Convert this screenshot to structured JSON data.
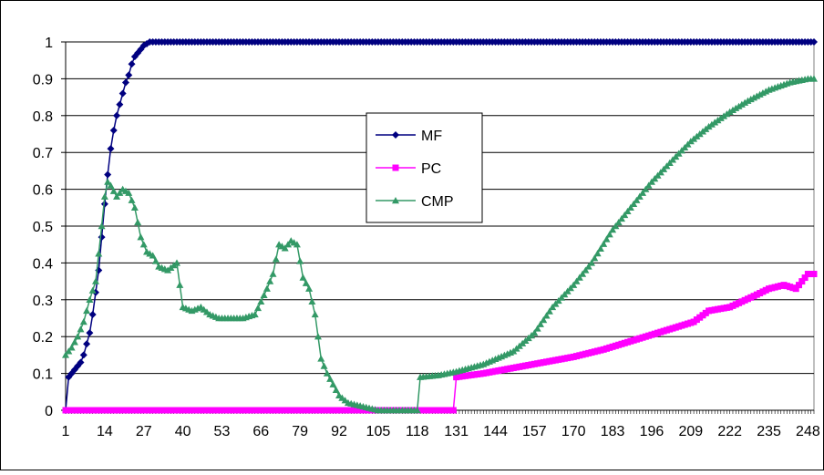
{
  "chart_data": {
    "type": "line",
    "title": "",
    "xlabel": "",
    "ylabel": "",
    "x_range": [
      1,
      250
    ],
    "xticks": [
      1,
      14,
      27,
      40,
      53,
      66,
      79,
      92,
      105,
      118,
      131,
      144,
      157,
      170,
      183,
      196,
      209,
      222,
      235,
      248
    ],
    "xtick_labels": [
      "1",
      "14",
      "27",
      "40",
      "53",
      "66",
      "79",
      "92",
      "105",
      "118",
      "131",
      "144",
      "157",
      "170",
      "183",
      "196",
      "209",
      "222",
      "235",
      "248"
    ],
    "ylim": [
      0,
      1
    ],
    "yticks": [
      0,
      0.1,
      0.2,
      0.3,
      0.4,
      0.5,
      0.6,
      0.7,
      0.8,
      0.9,
      1
    ],
    "ytick_labels": [
      "0",
      "0.1",
      "0.2",
      "0.3",
      "0.4",
      "0.5",
      "0.6",
      "0.7",
      "0.8",
      "0.9",
      "1"
    ],
    "grid": "horizontal",
    "legend_position": "center",
    "series": [
      {
        "name": "MF",
        "color": "#000080",
        "marker": "diamond",
        "points": [
          [
            1,
            0
          ],
          [
            2,
            0.09
          ],
          [
            3,
            0.1
          ],
          [
            4,
            0.11
          ],
          [
            5,
            0.12
          ],
          [
            6,
            0.13
          ],
          [
            7,
            0.15
          ],
          [
            8,
            0.18
          ],
          [
            9,
            0.21
          ],
          [
            10,
            0.26
          ],
          [
            11,
            0.32
          ],
          [
            12,
            0.38
          ],
          [
            13,
            0.47
          ],
          [
            14,
            0.56
          ],
          [
            15,
            0.64
          ],
          [
            16,
            0.71
          ],
          [
            17,
            0.76
          ],
          [
            18,
            0.8
          ],
          [
            19,
            0.83
          ],
          [
            20,
            0.86
          ],
          [
            21,
            0.89
          ],
          [
            22,
            0.91
          ],
          [
            23,
            0.94
          ],
          [
            24,
            0.96
          ],
          [
            25,
            0.97
          ],
          [
            26,
            0.98
          ],
          [
            27,
            0.99
          ],
          [
            28,
            0.995
          ],
          [
            29,
            1
          ],
          [
            30,
            1
          ],
          [
            248,
            1
          ],
          [
            250,
            1
          ]
        ]
      },
      {
        "name": "PC",
        "color": "#ff00ff",
        "marker": "square",
        "points": [
          [
            1,
            0
          ],
          [
            130,
            0
          ],
          [
            131,
            0.09
          ],
          [
            140,
            0.1
          ],
          [
            150,
            0.115
          ],
          [
            160,
            0.13
          ],
          [
            170,
            0.145
          ],
          [
            180,
            0.165
          ],
          [
            190,
            0.19
          ],
          [
            200,
            0.215
          ],
          [
            210,
            0.24
          ],
          [
            215,
            0.27
          ],
          [
            222,
            0.28
          ],
          [
            230,
            0.31
          ],
          [
            235,
            0.33
          ],
          [
            240,
            0.34
          ],
          [
            244,
            0.33
          ],
          [
            246,
            0.35
          ],
          [
            248,
            0.37
          ],
          [
            250,
            0.37
          ]
        ]
      },
      {
        "name": "CMP",
        "color": "#339966",
        "marker": "triangle",
        "points": [
          [
            1,
            0.15
          ],
          [
            3,
            0.17
          ],
          [
            5,
            0.2
          ],
          [
            7,
            0.24
          ],
          [
            9,
            0.3
          ],
          [
            11,
            0.35
          ],
          [
            13,
            0.5
          ],
          [
            14,
            0.58
          ],
          [
            15,
            0.62
          ],
          [
            16,
            0.61
          ],
          [
            18,
            0.58
          ],
          [
            20,
            0.6
          ],
          [
            22,
            0.59
          ],
          [
            24,
            0.55
          ],
          [
            26,
            0.47
          ],
          [
            28,
            0.43
          ],
          [
            30,
            0.42
          ],
          [
            32,
            0.39
          ],
          [
            35,
            0.38
          ],
          [
            38,
            0.4
          ],
          [
            40,
            0.28
          ],
          [
            43,
            0.27
          ],
          [
            46,
            0.28
          ],
          [
            49,
            0.26
          ],
          [
            52,
            0.25
          ],
          [
            56,
            0.25
          ],
          [
            60,
            0.25
          ],
          [
            64,
            0.26
          ],
          [
            68,
            0.33
          ],
          [
            70,
            0.37
          ],
          [
            72,
            0.45
          ],
          [
            74,
            0.44
          ],
          [
            76,
            0.46
          ],
          [
            78,
            0.45
          ],
          [
            80,
            0.36
          ],
          [
            82,
            0.33
          ],
          [
            84,
            0.26
          ],
          [
            86,
            0.14
          ],
          [
            88,
            0.1
          ],
          [
            90,
            0.07
          ],
          [
            92,
            0.04
          ],
          [
            95,
            0.02
          ],
          [
            100,
            0.01
          ],
          [
            105,
            0
          ],
          [
            110,
            0
          ],
          [
            115,
            0
          ],
          [
            118,
            0
          ],
          [
            119,
            0.09
          ],
          [
            125,
            0.095
          ],
          [
            131,
            0.105
          ],
          [
            140,
            0.125
          ],
          [
            150,
            0.16
          ],
          [
            157,
            0.21
          ],
          [
            163,
            0.28
          ],
          [
            170,
            0.34
          ],
          [
            176,
            0.4
          ],
          [
            183,
            0.49
          ],
          [
            190,
            0.56
          ],
          [
            196,
            0.62
          ],
          [
            203,
            0.68
          ],
          [
            209,
            0.73
          ],
          [
            215,
            0.77
          ],
          [
            222,
            0.81
          ],
          [
            228,
            0.84
          ],
          [
            235,
            0.87
          ],
          [
            242,
            0.89
          ],
          [
            248,
            0.9
          ],
          [
            250,
            0.9
          ]
        ]
      }
    ]
  }
}
